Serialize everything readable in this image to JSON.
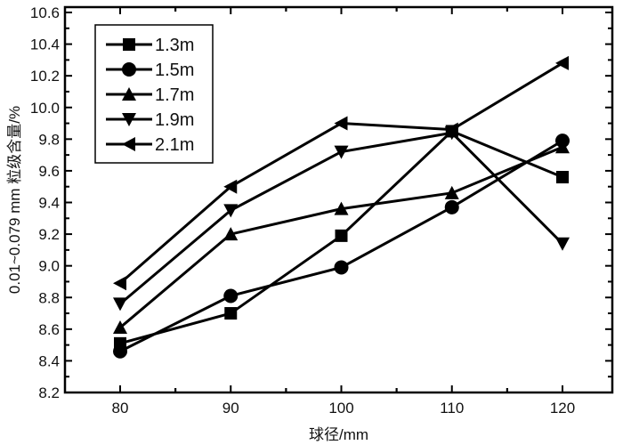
{
  "chart_data": {
    "type": "line",
    "title": "",
    "xlabel": "球径/mm",
    "ylabel": "0.01~0.079 mm 粒级含量/%",
    "x": [
      80,
      90,
      100,
      110,
      120
    ],
    "xticks": [
      "80",
      "90",
      "100",
      "110",
      "120"
    ],
    "yticks": [
      "8.2",
      "8.4",
      "8.6",
      "8.8",
      "9.0",
      "9.2",
      "9.4",
      "9.6",
      "9.8",
      "10.0",
      "10.2",
      "10.4",
      "10.6"
    ],
    "xlim": [
      75,
      125
    ],
    "ylim": [
      8.2,
      10.6
    ],
    "grid": false,
    "legend_position": "top-left",
    "series": [
      {
        "name": "1.3m",
        "marker": "square",
        "values": [
          8.51,
          8.7,
          9.19,
          9.85,
          9.56
        ]
      },
      {
        "name": "1.5m",
        "marker": "circle",
        "values": [
          8.46,
          8.81,
          8.99,
          9.37,
          9.79
        ]
      },
      {
        "name": "1.7m",
        "marker": "triangle-up",
        "values": [
          8.61,
          9.2,
          9.36,
          9.46,
          9.75
        ]
      },
      {
        "name": "1.9m",
        "marker": "triangle-down",
        "values": [
          8.76,
          9.35,
          9.72,
          9.84,
          9.14
        ]
      },
      {
        "name": "2.1m",
        "marker": "triangle-left",
        "values": [
          8.89,
          9.5,
          9.9,
          9.86,
          10.28
        ]
      }
    ]
  }
}
